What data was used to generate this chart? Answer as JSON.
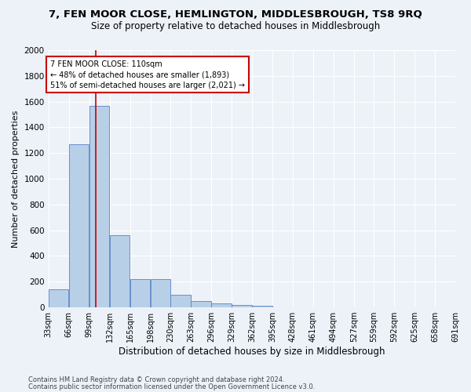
{
  "title": "7, FEN MOOR CLOSE, HEMLINGTON, MIDDLESBROUGH, TS8 9RQ",
  "subtitle": "Size of property relative to detached houses in Middlesbrough",
  "xlabel": "Distribution of detached houses by size in Middlesbrough",
  "ylabel": "Number of detached properties",
  "footer_line1": "Contains HM Land Registry data © Crown copyright and database right 2024.",
  "footer_line2": "Contains public sector information licensed under the Open Government Licence v3.0.",
  "bins_left": [
    33,
    66,
    99,
    132,
    165,
    198,
    230,
    263,
    296,
    329,
    362,
    395,
    428,
    461,
    494,
    527,
    559,
    592,
    625,
    658
  ],
  "bins_right": [
    66,
    99,
    132,
    165,
    198,
    230,
    263,
    296,
    329,
    362,
    395,
    428,
    461,
    494,
    527,
    559,
    592,
    625,
    658,
    691
  ],
  "bar_heights": [
    140,
    1270,
    1570,
    560,
    220,
    220,
    95,
    50,
    30,
    20,
    13,
    0,
    0,
    0,
    0,
    0,
    0,
    0,
    0,
    0
  ],
  "tick_labels": [
    "33sqm",
    "66sqm",
    "99sqm",
    "132sqm",
    "165sqm",
    "198sqm",
    "230sqm",
    "263sqm",
    "296sqm",
    "329sqm",
    "362sqm",
    "395sqm",
    "428sqm",
    "461sqm",
    "494sqm",
    "527sqm",
    "559sqm",
    "592sqm",
    "625sqm",
    "658sqm",
    "691sqm"
  ],
  "bar_color": "#b8cfe8",
  "bar_edgecolor": "#5585c5",
  "property_size": 110,
  "vline_color": "#cc0000",
  "annotation_line1": "7 FEN MOOR CLOSE: 110sqm",
  "annotation_line2": "← 48% of detached houses are smaller (1,893)",
  "annotation_line3": "51% of semi-detached houses are larger (2,021) →",
  "annotation_box_color": "#cc0000",
  "ylim_max": 2000,
  "yticks": [
    0,
    200,
    400,
    600,
    800,
    1000,
    1200,
    1400,
    1600,
    1800,
    2000
  ],
  "bg_color": "#edf2f9",
  "grid_color": "#ffffff",
  "title_fontsize": 9.5,
  "subtitle_fontsize": 8.5,
  "axis_label_fontsize": 8,
  "tick_fontsize": 7,
  "ylabel_fontsize": 8
}
